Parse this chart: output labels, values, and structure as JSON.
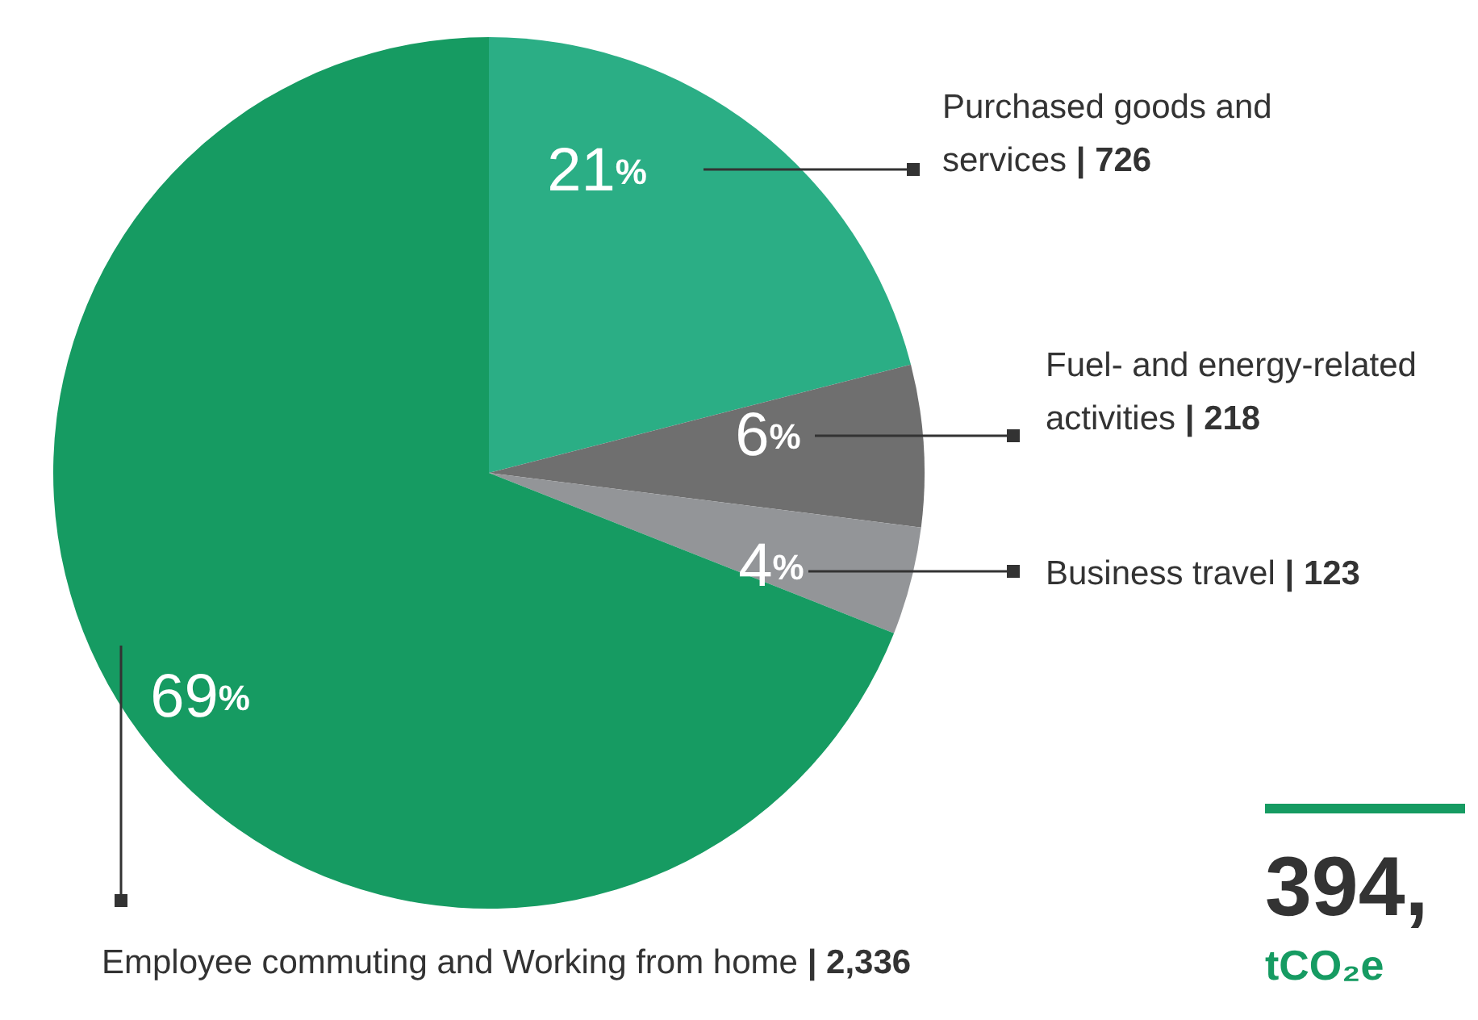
{
  "chart_data": {
    "type": "pie",
    "categories": [
      "Purchased goods and services | 726",
      "Fuel- and energy-related activities | 218",
      "Business travel | 123",
      "Employee commuting and Working from home | 2,336"
    ],
    "values": [
      21,
      6,
      4,
      69
    ],
    "value_labels": [
      "21%",
      "6%",
      "4%",
      "69%"
    ],
    "colors": [
      "#2bae85",
      "#6f6f6f",
      "#939598",
      "#169b62"
    ],
    "annotations": [
      "394,",
      "tCO₂e"
    ]
  }
}
